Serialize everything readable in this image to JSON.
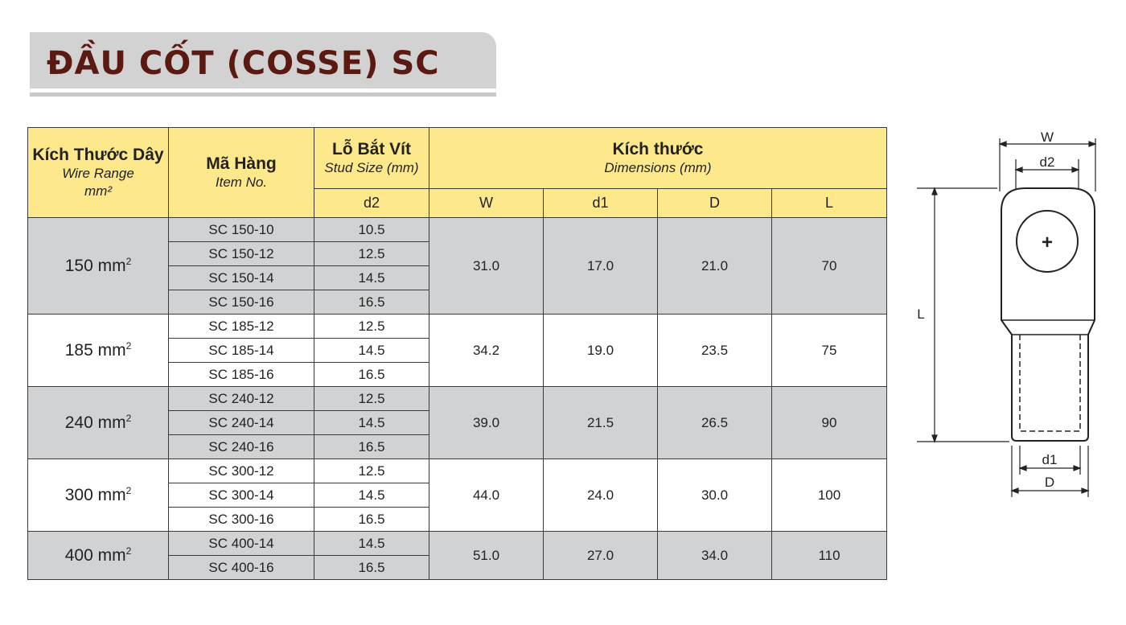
{
  "title": "ĐẦU CỐT (COSSE) SC",
  "table": {
    "headers": {
      "wire_range": {
        "main": "Kích Thước Dây",
        "sub": "Wire Range",
        "unit": "mm²"
      },
      "item_no": {
        "main": "Mã Hàng",
        "sub": "Item No."
      },
      "stud_size": {
        "main": "Lỗ Bắt Vít",
        "sub": "Stud Size  (mm)",
        "col": "d2"
      },
      "dimensions": {
        "main": "Kích thước",
        "sub": "Dimensions  (mm)",
        "cols": [
          "W",
          "d1",
          "D",
          "L"
        ]
      }
    },
    "groups": [
      {
        "range": "150 mm",
        "range_sup": "2",
        "W": "31.0",
        "d1": "17.0",
        "D": "21.0",
        "L": "70",
        "items": [
          {
            "code": "SC 150-10",
            "d2": "10.5"
          },
          {
            "code": "SC 150-12",
            "d2": "12.5"
          },
          {
            "code": "SC 150-14",
            "d2": "14.5"
          },
          {
            "code": "SC 150-16",
            "d2": "16.5"
          }
        ]
      },
      {
        "range": "185 mm",
        "range_sup": "2",
        "W": "34.2",
        "d1": "19.0",
        "D": "23.5",
        "L": "75",
        "items": [
          {
            "code": "SC 185-12",
            "d2": "12.5"
          },
          {
            "code": "SC 185-14",
            "d2": "14.5"
          },
          {
            "code": "SC 185-16",
            "d2": "16.5"
          }
        ]
      },
      {
        "range": "240 mm",
        "range_sup": "2",
        "W": "39.0",
        "d1": "21.5",
        "D": "26.5",
        "L": "90",
        "items": [
          {
            "code": "SC 240-12",
            "d2": "12.5"
          },
          {
            "code": "SC 240-14",
            "d2": "14.5"
          },
          {
            "code": "SC 240-16",
            "d2": "16.5"
          }
        ]
      },
      {
        "range": "300 mm",
        "range_sup": "2",
        "W": "44.0",
        "d1": "24.0",
        "D": "30.0",
        "L": "100",
        "items": [
          {
            "code": "SC 300-12",
            "d2": "12.5"
          },
          {
            "code": "SC 300-14",
            "d2": "14.5"
          },
          {
            "code": "SC 300-16",
            "d2": "16.5"
          }
        ]
      },
      {
        "range": "400 mm",
        "range_sup": "2",
        "W": "51.0",
        "d1": "27.0",
        "D": "34.0",
        "L": "110",
        "items": [
          {
            "code": "SC 400-14",
            "d2": "14.5"
          },
          {
            "code": "SC 400-16",
            "d2": "16.5"
          }
        ]
      }
    ]
  },
  "diagram": {
    "labels": {
      "W": "W",
      "d2": "d2",
      "L": "L",
      "d1": "d1",
      "D": "D",
      "center": "+"
    }
  },
  "colors": {
    "title": "#5a1a12",
    "header_bg": "#fde98c",
    "band_gray": "#d2d2d3",
    "row_gray": "#d1d2d4"
  }
}
